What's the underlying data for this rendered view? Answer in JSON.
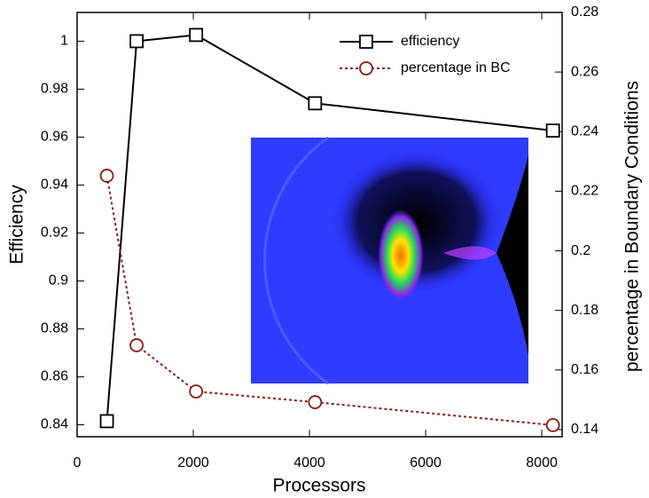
{
  "chart_data": {
    "type": "line",
    "x": [
      512,
      1024,
      2048,
      4096,
      8192
    ],
    "x_label": "Processors",
    "y_label": "Efficiency",
    "y2_label": "percentage in Boundary Conditions",
    "series": [
      {
        "name": "efficiency",
        "color": "#000000",
        "marker": "square",
        "dash": "solid",
        "values": [
          0.8415,
          1.0,
          1.0026,
          0.9741,
          0.9627
        ]
      },
      {
        "name": "percentage in BC",
        "color": "#8b1a0e",
        "marker": "circle",
        "dash": "dotted",
        "axis": "y2",
        "values": [
          0.2252,
          0.1683,
          0.1528,
          0.1492,
          0.1415
        ]
      }
    ],
    "xlim": [
      0,
      8350
    ],
    "xticks": [
      0,
      2000,
      4000,
      6000,
      8000
    ],
    "ylim": [
      0.835,
      1.012
    ],
    "yticks": [
      0.84,
      0.86,
      0.88,
      0.9,
      0.92,
      0.94,
      0.96,
      0.98,
      1
    ],
    "y2lim": [
      0.1376,
      0.28
    ],
    "y2ticks": [
      0.14,
      0.16,
      0.18,
      0.2,
      0.22,
      0.24,
      0.26,
      0.28
    ],
    "legend": "upper right",
    "grid": false
  }
}
